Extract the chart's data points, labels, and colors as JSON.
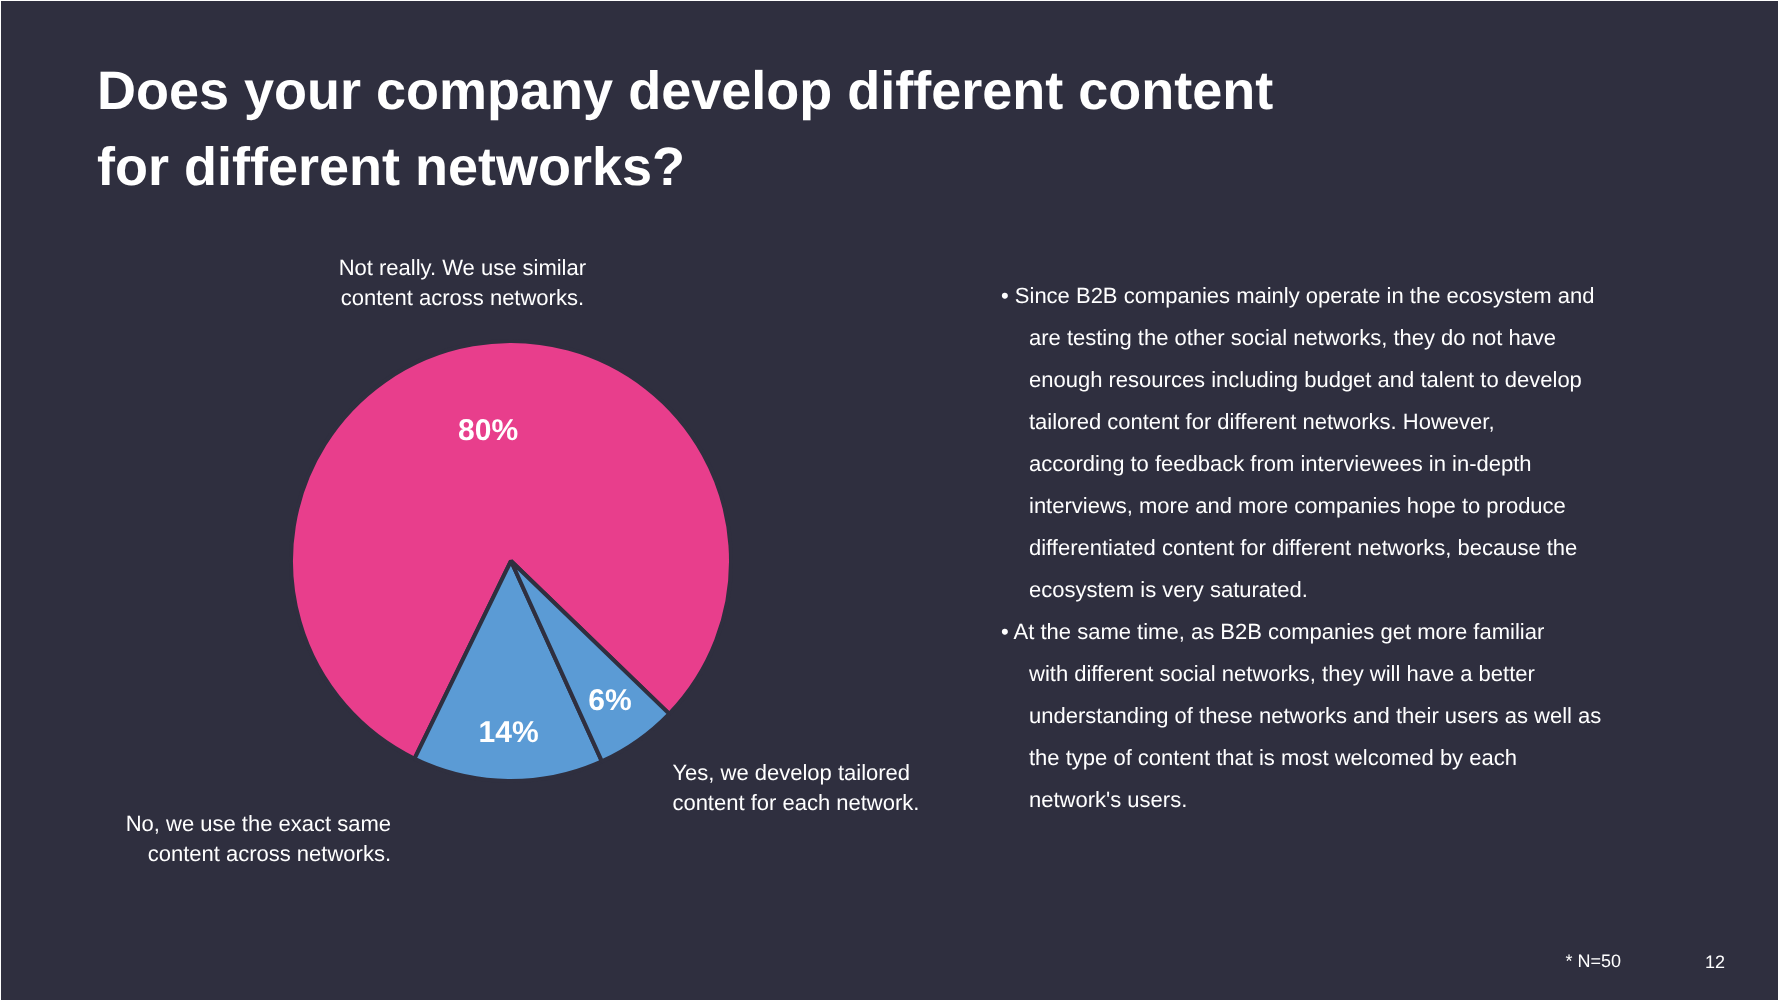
{
  "chart_data": {
    "type": "pie",
    "title": "Does your company develop different content for different networks?",
    "categories": [
      "Not really. We use similar content across networks.",
      "No, we use the exact same content across networks.",
      "Yes, we develop tailored content for each network."
    ],
    "values": [
      80,
      14,
      6
    ],
    "colors": [
      "#e83e8c",
      "#5b9bd5",
      "#5b9bd5"
    ],
    "value_labels": [
      "80%",
      "14%",
      "6%"
    ],
    "annotations": [
      "• Since B2B companies mainly operate in the ecosystem and are testing the other social networks, they do not have enough resources including budget and talent to develop tailored content for different networks. However, according to feedback from interviewees in in-depth interviews, more and more companies hope to produce differentiated content for different networks, because the ecosystem is very saturated.",
      "• At the same time, as B2B companies get more familiar with different social networks, they will have a better understanding of these networks and their users as well as the type of content that is most welcomed by each network's users.",
      "* N=50",
      "12"
    ]
  }
}
